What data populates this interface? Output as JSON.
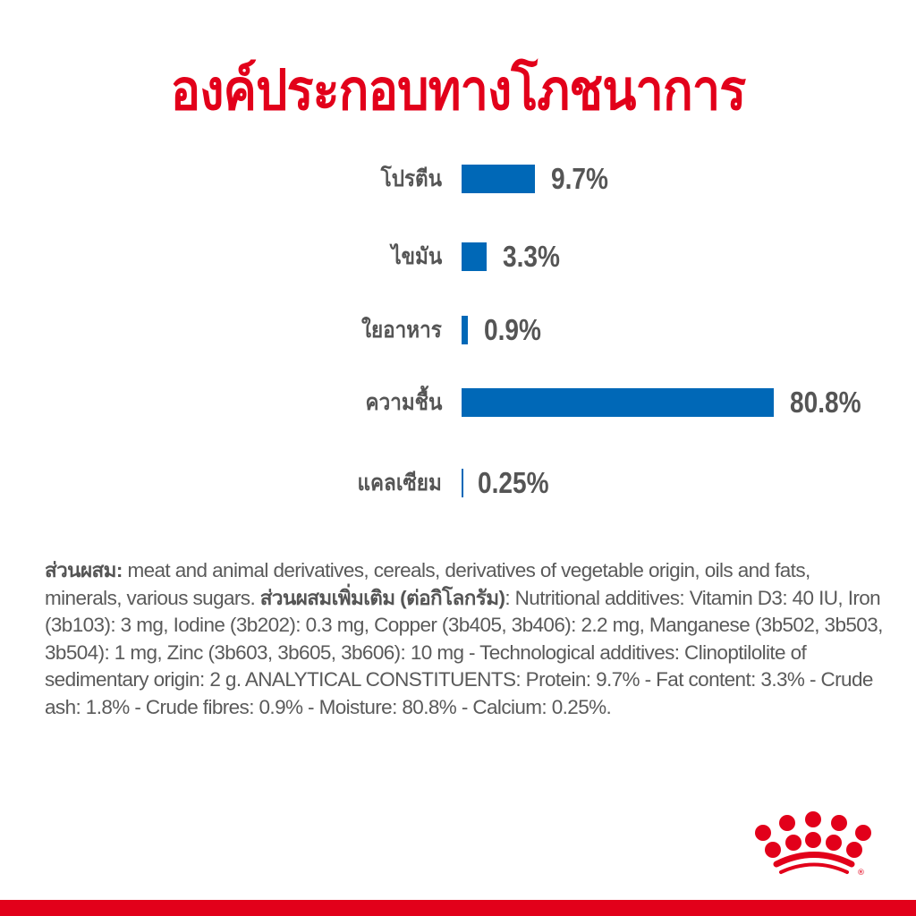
{
  "title": "องค์ประกอบทางโภชนาการ",
  "colors": {
    "title": "#e2001a",
    "bar": "#0068b7",
    "brand_red": "#e2001a"
  },
  "chart_data": {
    "type": "bar",
    "orientation": "horizontal",
    "categories": [
      "โปรตีน",
      "ไขมัน",
      "ใยอาหาร",
      "ความชื้น",
      "แคลเซียม"
    ],
    "values": [
      9.7,
      3.3,
      0.9,
      80.8,
      0.25
    ],
    "value_labels": [
      "9.7%",
      "3.3%",
      "0.9%",
      "80.8%",
      "0.25%"
    ],
    "unit": "%",
    "grid": false
  },
  "ingredients": {
    "label1": "ส่วนผสม:",
    "text1": " meat and animal derivatives, cereals, derivatives of vegetable origin, oils and fats, minerals, various sugars. ",
    "label2": "ส่วนผสมเพิ่มเติม (ต่อกิโลกรัม)",
    "text2": ": Nutritional additives: Vitamin D3: 40 IU, Iron (3b103): 3 mg, Iodine (3b202): 0.3 mg, Copper (3b405, 3b406): 2.2 mg, Manganese (3b502, 3b503, 3b504): 1 mg, Zinc (3b603, 3b605, 3b606): 10 mg - Technological additives: Clinoptilolite of sedimentary origin: 2 g. ANALYTICAL CONSTITUENTS: Protein: 9.7% - Fat content: 3.3% - Crude ash: 1.8% - Crude fibres: 0.9% - Moisture: 80.8% - Calcium: 0.25%."
  },
  "logo": {
    "icon": "royal-canin-crown-icon",
    "mark": "®"
  }
}
